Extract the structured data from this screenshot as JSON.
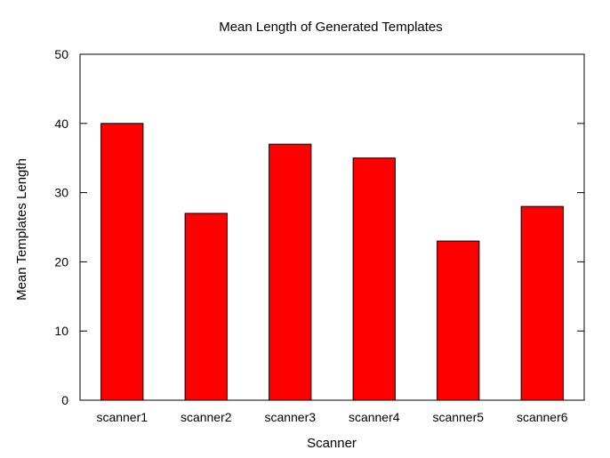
{
  "chart_data": {
    "type": "bar",
    "title": "Mean Length of Generated Templates",
    "xlabel": "Scanner",
    "ylabel": "Mean Templates Length",
    "categories": [
      "scanner1",
      "scanner2",
      "scanner3",
      "scanner4",
      "scanner5",
      "scanner6"
    ],
    "values": [
      40,
      27,
      37,
      35,
      23,
      28
    ],
    "ylim": [
      0,
      50
    ],
    "yticks": [
      "0",
      "10",
      "20",
      "30",
      "40",
      "50"
    ],
    "bar_color": "#ff0000",
    "grid": false,
    "legend": "none"
  }
}
